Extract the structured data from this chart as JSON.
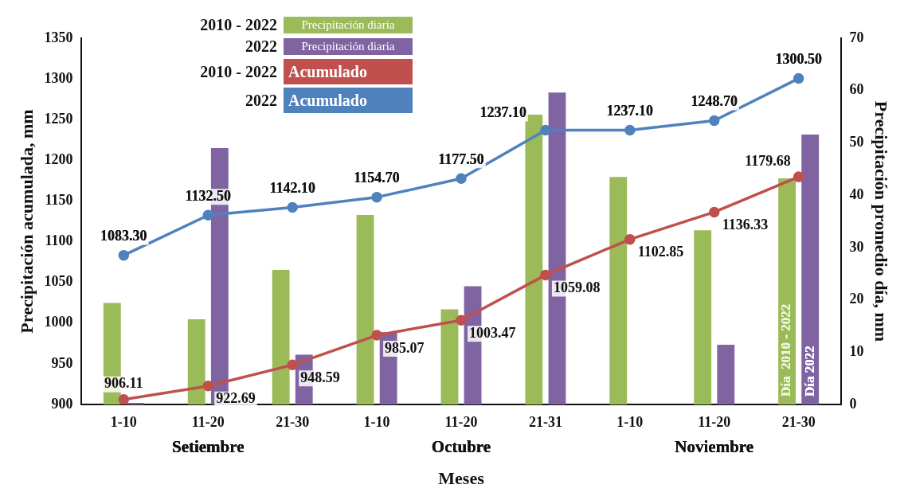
{
  "chart_data": {
    "type": "bar",
    "categories": [
      "1-10",
      "11-20",
      "21-30",
      "1-10",
      "11-20",
      "21-31",
      "1-10",
      "11-20",
      "21-30"
    ],
    "xlabel": "Meses",
    "ylabel": "Precipitación acumulada, mm",
    "y2label": "Precipitación promedio día, mm",
    "ylim": [
      900,
      1350
    ],
    "yticks": [
      900,
      950,
      1000,
      1050,
      1100,
      1150,
      1200,
      1250,
      1300,
      1350
    ],
    "y2lim": [
      0,
      70
    ],
    "y2ticks": [
      0,
      10,
      20,
      30,
      40,
      50,
      60,
      70
    ],
    "grid": false,
    "legend": "top left",
    "marker": "circle",
    "annotations": [
      "Setiembre",
      "Octubre",
      "Noviembre",
      "Día  2010 - 2022",
      "Día 2022"
    ],
    "series": [
      {
        "name": "2010 - 2022 Precipitación diaria",
        "axis": "y2",
        "color": "#9bbb59",
        "values": [
          19.4,
          16.3,
          25.7,
          36.2,
          18.2,
          55.4,
          43.5,
          33.3,
          43.2
        ]
      },
      {
        "name": "2022 Precipitación diaria",
        "axis": "y2",
        "color": "#8064a2",
        "values": [
          0.3,
          49.0,
          9.5,
          13.8,
          22.6,
          59.6,
          null,
          11.4,
          51.6
        ]
      },
      {
        "name": "2010 - 2022 Acumulado",
        "type": "line",
        "axis": "y",
        "color": "#c0504d",
        "values": [
          906.11,
          922.69,
          948.59,
          985.07,
          1003.47,
          1059.08,
          1102.85,
          1136.33,
          1179.68
        ],
        "value_labels": [
          "906.11",
          "922.69",
          "948.59",
          "985.07",
          "1003.47",
          "1059.08",
          "1102.85",
          "1136.33",
          "1179.68"
        ]
      },
      {
        "name": "2022 Acumulado",
        "type": "line",
        "axis": "y",
        "color": "#4f81bd",
        "values": [
          1083.3,
          1132.5,
          1142.1,
          1154.7,
          1177.5,
          1237.1,
          1237.1,
          1248.7,
          1300.5
        ],
        "value_labels": [
          "1083.30",
          "1132.50",
          "1142.10",
          "1154.70",
          "1177.50",
          "1237.10",
          "1237.10",
          "1248.70",
          "1300.50"
        ]
      }
    ]
  }
}
